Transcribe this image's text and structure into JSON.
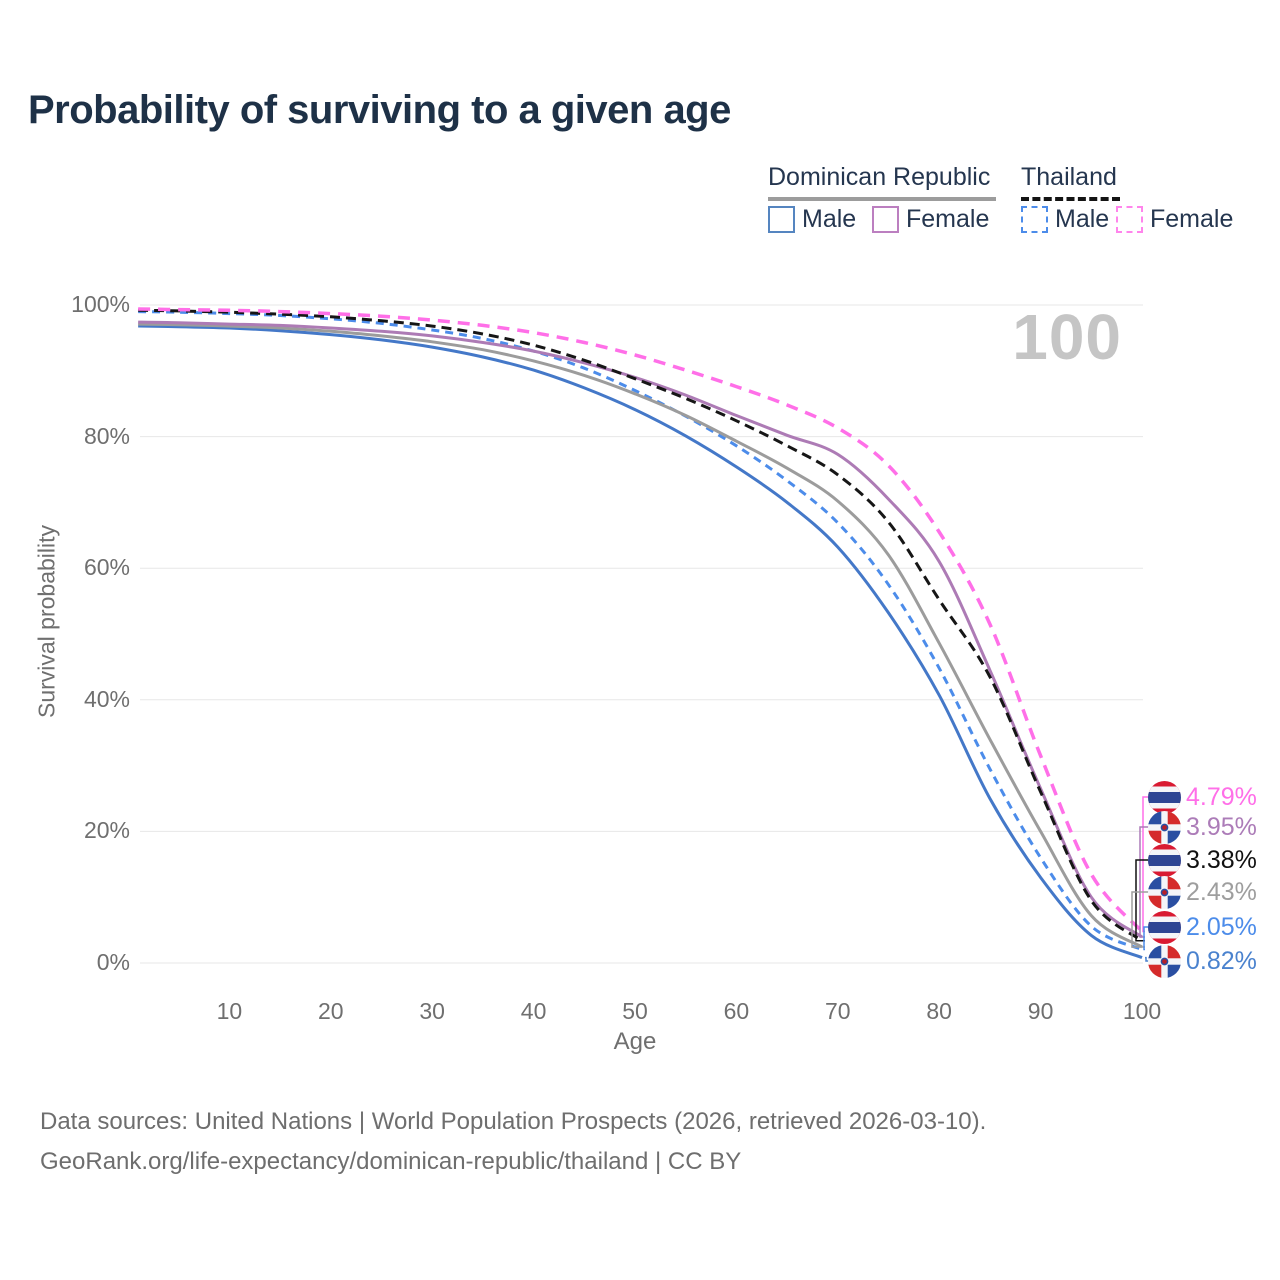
{
  "title": "Probability of surviving to a given age",
  "watermark": "100",
  "legend": {
    "groups": [
      {
        "label": "Dominican Republic",
        "line_style": "solid",
        "line_color": "#9c9c9c"
      },
      {
        "label": "Thailand",
        "line_style": "dashed",
        "line_color": "#141414"
      }
    ],
    "items": [
      {
        "label": "Male",
        "group": "Dominican Republic",
        "swatch_style": "solid",
        "swatch_color": "#5585c0"
      },
      {
        "label": "Female",
        "group": "Dominican Republic",
        "swatch_style": "solid",
        "swatch_color": "#bc7fc0"
      },
      {
        "label": "Male",
        "group": "Thailand",
        "swatch_style": "dashed",
        "swatch_color": "#4c8cea"
      },
      {
        "label": "Female",
        "group": "Thailand",
        "swatch_style": "dashed",
        "swatch_color": "#ff85ec"
      }
    ]
  },
  "chart_data": {
    "type": "line",
    "title": "Probability of surviving to a given age",
    "xlabel": "Age",
    "ylabel": "Survival probability",
    "xlim": [
      0,
      100
    ],
    "ylim": [
      0,
      100
    ],
    "grid": "horizontal",
    "x_ticks": [
      10,
      20,
      30,
      40,
      50,
      60,
      70,
      80,
      90,
      100
    ],
    "y_tick_labels": [
      "0%",
      "20%",
      "40%",
      "60%",
      "80%",
      "100%"
    ],
    "y_tick_values": [
      0,
      20,
      40,
      60,
      80,
      100
    ],
    "x": [
      1,
      5,
      10,
      15,
      20,
      25,
      30,
      35,
      40,
      45,
      50,
      55,
      60,
      65,
      70,
      75,
      80,
      85,
      90,
      95,
      100
    ],
    "series": [
      {
        "name": "Thailand Female",
        "country": "Thailand",
        "sex": "Female",
        "color": "#ff6fe8",
        "dash": "12 8",
        "width": 3.5,
        "values": [
          99.4,
          99.3,
          99.2,
          99.0,
          98.7,
          98.3,
          97.7,
          96.9,
          95.8,
          94.3,
          92.4,
          90.1,
          87.6,
          84.8,
          81.3,
          75.6,
          65.5,
          51.5,
          31.5,
          13.5,
          4.79
        ],
        "end_label": "4.79%",
        "end_label_color": "#ff6fe8",
        "flag": "thailand"
      },
      {
        "name": "Dominican Republic Female",
        "country": "Dominican Republic",
        "sex": "Female",
        "color": "#ad7bb5",
        "dash": null,
        "width": 3,
        "values": [
          97.4,
          97.3,
          97.1,
          96.9,
          96.5,
          96.0,
          95.3,
          94.3,
          93.0,
          91.2,
          89.0,
          86.3,
          83.2,
          80.2,
          77.3,
          70.5,
          61.0,
          44.5,
          26.5,
          10.0,
          3.95
        ],
        "end_label": "3.95%",
        "end_label_color": "#ac7cb8",
        "flag": "dominican-republic"
      },
      {
        "name": "Thailand Both sexes",
        "country": "Thailand",
        "sex": "Both",
        "color": "#161616",
        "dash": "10 6",
        "width": 3,
        "values": [
          99.2,
          99.1,
          98.9,
          98.6,
          98.2,
          97.6,
          96.8,
          95.6,
          93.9,
          91.6,
          88.8,
          85.8,
          82.4,
          78.6,
          74.2,
          67.0,
          55.2,
          43.5,
          26.0,
          9.5,
          3.38
        ],
        "end_label": "3.38%",
        "end_label_color": "#111111",
        "flag": "thailand"
      },
      {
        "name": "Dominican Republic Both sexes",
        "country": "Dominican Republic",
        "sex": "Both",
        "color": "#9c9c9c",
        "dash": null,
        "width": 3,
        "values": [
          97.1,
          97.0,
          96.8,
          96.5,
          96.0,
          95.3,
          94.4,
          93.2,
          91.5,
          89.3,
          86.5,
          83.2,
          79.3,
          75.2,
          70.2,
          62.0,
          48.6,
          34.0,
          20.0,
          7.2,
          2.43
        ],
        "end_label": "2.43%",
        "end_label_color": "#9e9e9e",
        "flag": "dominican-republic"
      },
      {
        "name": "Thailand Male",
        "country": "Thailand",
        "sex": "Male",
        "color": "#4c8cea",
        "dash": "8 6",
        "width": 3,
        "values": [
          99.0,
          98.9,
          98.7,
          98.4,
          97.9,
          97.2,
          96.2,
          94.9,
          93.0,
          90.4,
          87.0,
          83.1,
          78.6,
          73.3,
          66.9,
          57.5,
          44.8,
          29.5,
          16.0,
          5.6,
          2.05
        ],
        "end_label": "2.05%",
        "end_label_color": "#4c8cea",
        "flag": "thailand"
      },
      {
        "name": "Dominican Republic Male",
        "country": "Dominican Republic",
        "sex": "Male",
        "color": "#4478c8",
        "dash": null,
        "width": 3,
        "values": [
          96.8,
          96.7,
          96.5,
          96.1,
          95.5,
          94.7,
          93.6,
          92.1,
          90.1,
          87.4,
          84.1,
          80.1,
          75.4,
          70.0,
          63.2,
          53.2,
          40.7,
          25.0,
          13.0,
          4.2,
          0.82
        ],
        "end_label": "0.82%",
        "end_label_color": "#4a82ce",
        "flag": "dominican-republic"
      }
    ]
  },
  "footer": {
    "line1": "Data sources: United Nations | World Population Prospects (2026, retrieved 2026-03-10).",
    "line2": "GeoRank.org/life-expectancy/dominican-republic/thailand | CC BY"
  }
}
